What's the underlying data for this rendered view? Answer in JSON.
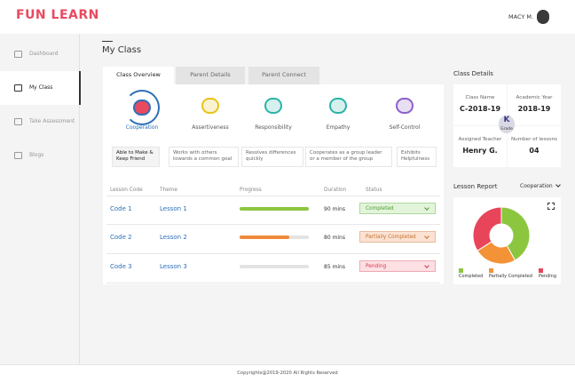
{
  "header": {
    "logo": "FUN LEARN",
    "user": "MACY M."
  },
  "sidebar": {
    "items": [
      "Dashboard",
      "My Class",
      "Take Assessment",
      "Blogs"
    ]
  },
  "page_title": "My Class",
  "tabs": [
    "Class Overview",
    "Parent Details",
    "Parent Connect"
  ],
  "skills": [
    "Cooperation",
    "Assertiveness",
    "Responsibility",
    "Empathy",
    "Self-Control"
  ],
  "behaviors": [
    "Able to Make & Keep Friend",
    "Works with others towards a common goal",
    "Resolves differences quickly",
    "Cooperates as a group leader or a member of the group",
    "Exhibits Helpfulness"
  ],
  "lessons": {
    "columns": [
      "Lesson Code",
      "Theme",
      "Progress",
      "Duration",
      "Status"
    ],
    "rows": [
      {
        "code": "Code 1",
        "theme": "Lesson 1",
        "progress": 100,
        "duration": "90 mins",
        "status": "Completed"
      },
      {
        "code": "Code 2",
        "theme": "Lesson 2",
        "progress": 72,
        "duration": "80 mins",
        "status": "Partially Completed"
      },
      {
        "code": "Code 3",
        "theme": "Lesson 3",
        "progress": 0,
        "duration": "85 mins",
        "status": "Pending"
      }
    ]
  },
  "class_details": {
    "title": "Class Details",
    "fields": [
      {
        "label": "Class Name",
        "value": "C-2018-19"
      },
      {
        "label": "Academic Year",
        "value": "2018-19"
      },
      {
        "label": "Assigned Teacher",
        "value": "Henry G."
      },
      {
        "label": "Number of lessons",
        "value": "04"
      }
    ],
    "grade_letter": "K",
    "grade_label": "Grade"
  },
  "lesson_report": {
    "title": "Lesson Report",
    "filter": "Cooperation",
    "legend": [
      "Completed",
      "Partially Completed",
      "Pending"
    ],
    "shares": [
      42,
      24,
      34
    ],
    "colors": [
      "#8cc63f",
      "#f39237",
      "#e8455a"
    ]
  },
  "footer": "Copyrights@2019-2020 All Rights Reserved"
}
